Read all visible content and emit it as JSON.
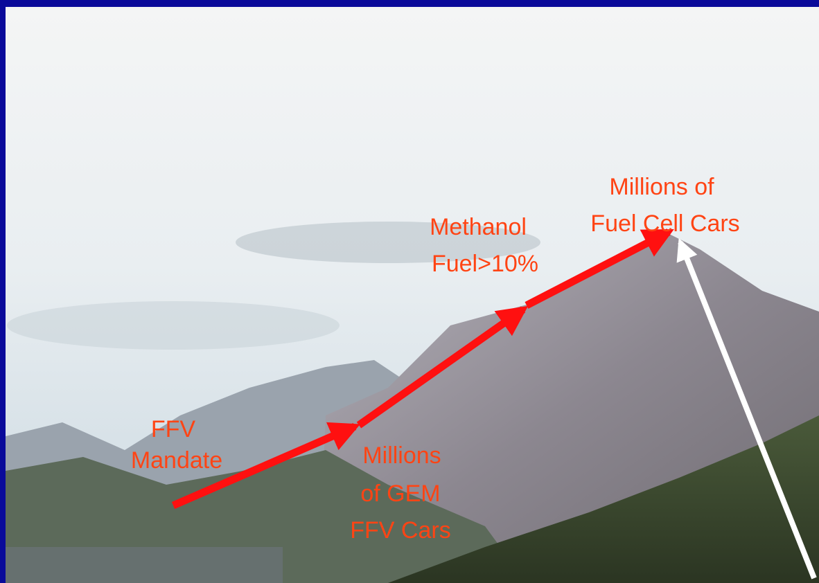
{
  "labels": [
    {
      "lines": [
        "FFV",
        "Mandate"
      ]
    },
    {
      "lines": [
        "Millions",
        "of GEM",
        "FFV Cars"
      ]
    },
    {
      "lines": [
        "Methanol",
        "Fuel>10%"
      ]
    },
    {
      "lines": [
        "Millions of",
        "Fuel Cell Cars"
      ]
    }
  ]
}
